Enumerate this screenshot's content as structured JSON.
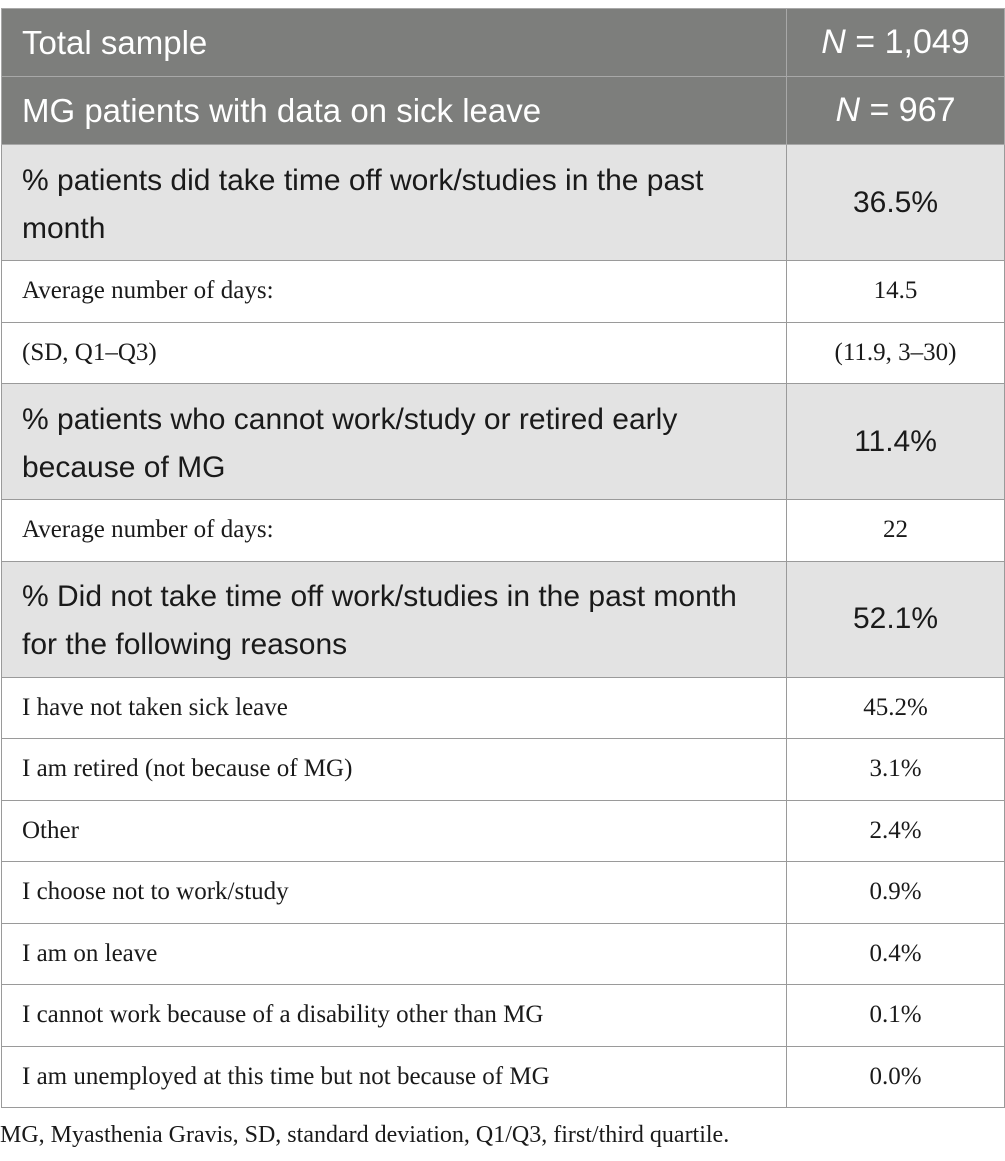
{
  "header_rows": [
    {
      "label": "Total sample",
      "n_prefix": "N",
      "n_value": " = 1,049"
    },
    {
      "label": "MG patients with data on sick leave",
      "n_prefix": "N",
      "n_value": " = 967"
    }
  ],
  "sections": [
    {
      "label": "% patients did take time off work/studies in the past month",
      "value": "36.5%",
      "rows": [
        {
          "label": "Average number of days:",
          "value": "14.5"
        },
        {
          "label": "(SD, Q1–Q3)",
          "value": "(11.9, 3–30)"
        }
      ]
    },
    {
      "label": "% patients who cannot work/study or retired early because of MG",
      "value": "11.4%",
      "rows": [
        {
          "label": "Average number of days:",
          "value": "22"
        }
      ]
    },
    {
      "label": "% Did not take time off work/studies in the past month for the following reasons",
      "value": "52.1%",
      "rows": [
        {
          "label": "I have not taken sick leave",
          "value": "45.2%"
        },
        {
          "label": "I am retired (not because of MG)",
          "value": "3.1%"
        },
        {
          "label": "Other",
          "value": "2.4%"
        },
        {
          "label": "I choose not to work/study",
          "value": "0.9%"
        },
        {
          "label": "I am on leave",
          "value": "0.4%"
        },
        {
          "label": "I cannot work because of a disability other than MG",
          "value": "0.1%"
        },
        {
          "label": "I am unemployed at this time but not because of MG",
          "value": "0.0%"
        }
      ]
    }
  ],
  "footnote": "MG, Myasthenia Gravis, SD, standard deviation, Q1/Q3, first/third quartile."
}
